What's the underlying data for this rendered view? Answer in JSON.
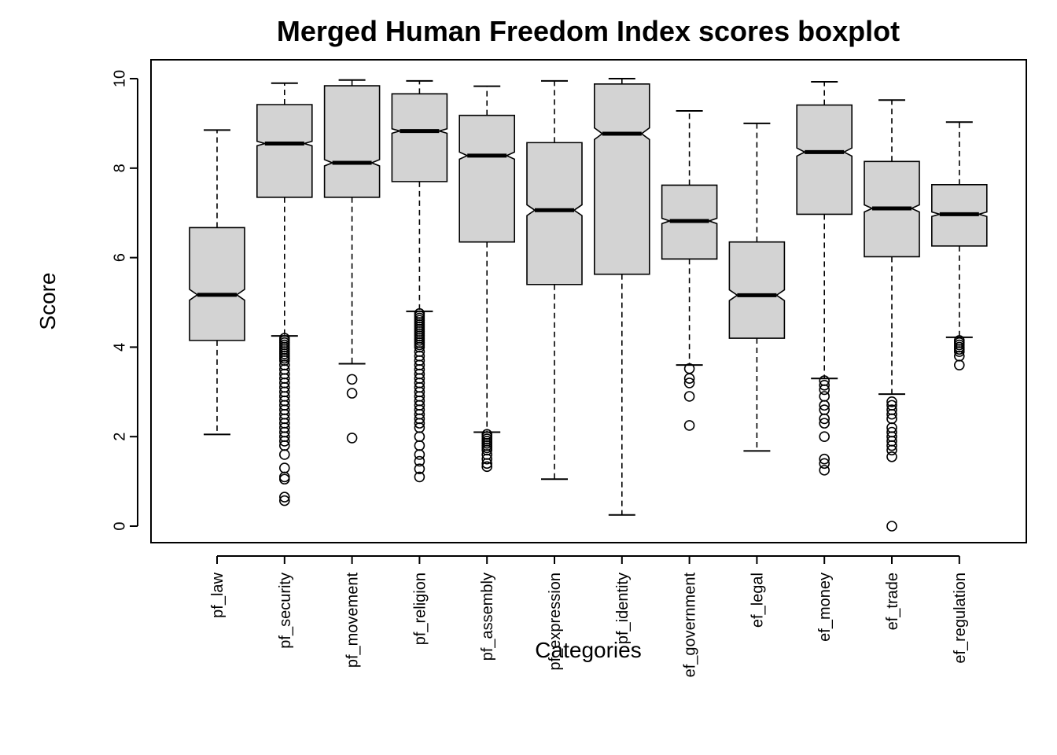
{
  "chart_data": {
    "type": "boxplot",
    "title": "Merged Human Freedom Index scores boxplot",
    "xlabel": "Categories",
    "ylabel": "Score",
    "ylim": [
      -0.4,
      10.4
    ],
    "yticks": [
      0,
      2,
      4,
      6,
      8,
      10
    ],
    "notched": true,
    "box_color": "#d3d3d3",
    "categories": [
      "pf_law",
      "pf_security",
      "pf_movement",
      "pf_religion",
      "pf_assembly",
      "pf_expression",
      "pf_identity",
      "ef_government",
      "ef_legal",
      "ef_money",
      "ef_trade",
      "ef_regulation"
    ],
    "boxes": [
      {
        "category": "pf_law",
        "whisker_low": 2.05,
        "q1": 4.15,
        "median": 5.17,
        "q3": 6.67,
        "whisker_high": 8.85,
        "notch_low": 5.05,
        "notch_high": 5.29,
        "outliers": []
      },
      {
        "category": "pf_security",
        "whisker_low": 4.25,
        "q1": 7.35,
        "median": 8.55,
        "q3": 9.42,
        "whisker_high": 9.9,
        "notch_low": 8.5,
        "notch_high": 8.6,
        "outliers": [
          4.2,
          4.15,
          4.1,
          4.05,
          4.0,
          3.95,
          3.9,
          3.85,
          3.8,
          3.75,
          3.7,
          3.6,
          3.5,
          3.4,
          3.3,
          3.2,
          3.1,
          3.0,
          2.9,
          2.8,
          2.7,
          2.6,
          2.5,
          2.4,
          2.3,
          2.2,
          2.1,
          2.0,
          1.9,
          1.8,
          1.6,
          1.3,
          1.1,
          1.05,
          0.65,
          0.57
        ]
      },
      {
        "category": "pf_movement",
        "whisker_low": 3.63,
        "q1": 7.35,
        "median": 8.12,
        "q3": 9.84,
        "whisker_high": 9.97,
        "notch_low": 8.05,
        "notch_high": 8.19,
        "outliers": [
          3.28,
          2.97,
          1.97
        ]
      },
      {
        "category": "pf_religion",
        "whisker_low": 4.8,
        "q1": 7.7,
        "median": 8.83,
        "q3": 9.66,
        "whisker_high": 9.95,
        "notch_low": 8.78,
        "notch_high": 8.88,
        "outliers": [
          4.75,
          4.7,
          4.65,
          4.6,
          4.55,
          4.5,
          4.45,
          4.4,
          4.35,
          4.3,
          4.25,
          4.2,
          4.15,
          4.1,
          4.05,
          4.0,
          3.9,
          3.8,
          3.7,
          3.6,
          3.5,
          3.4,
          3.3,
          3.2,
          3.1,
          3.0,
          2.9,
          2.8,
          2.7,
          2.6,
          2.5,
          2.4,
          2.3,
          2.2,
          2.0,
          1.8,
          1.6,
          1.45,
          1.28,
          1.1
        ]
      },
      {
        "category": "pf_assembly",
        "whisker_low": 2.1,
        "q1": 6.35,
        "median": 8.28,
        "q3": 9.18,
        "whisker_high": 9.83,
        "notch_low": 8.2,
        "notch_high": 8.36,
        "outliers": [
          2.05,
          2.0,
          1.95,
          1.9,
          1.85,
          1.8,
          1.75,
          1.7,
          1.6,
          1.5,
          1.4,
          1.33
        ]
      },
      {
        "category": "pf_expression",
        "whisker_low": 1.05,
        "q1": 5.4,
        "median": 7.06,
        "q3": 8.57,
        "whisker_high": 9.95,
        "notch_low": 6.94,
        "notch_high": 7.18,
        "outliers": []
      },
      {
        "category": "pf_identity",
        "whisker_low": 0.25,
        "q1": 5.63,
        "median": 8.77,
        "q3": 9.88,
        "whisker_high": 10.0,
        "notch_low": 8.64,
        "notch_high": 8.9,
        "outliers": []
      },
      {
        "category": "ef_government",
        "whisker_low": 3.6,
        "q1": 5.97,
        "median": 6.82,
        "q3": 7.62,
        "whisker_high": 9.28,
        "notch_low": 6.76,
        "notch_high": 6.88,
        "outliers": [
          3.52,
          3.3,
          3.2,
          2.9,
          2.25
        ]
      },
      {
        "category": "ef_legal",
        "whisker_low": 1.68,
        "q1": 4.2,
        "median": 5.16,
        "q3": 6.35,
        "whisker_high": 9.0,
        "notch_low": 5.04,
        "notch_high": 5.28,
        "outliers": []
      },
      {
        "category": "ef_money",
        "whisker_low": 3.3,
        "q1": 6.97,
        "median": 8.36,
        "q3": 9.41,
        "whisker_high": 9.93,
        "notch_low": 8.27,
        "notch_high": 8.45,
        "outliers": [
          3.25,
          3.15,
          3.05,
          2.9,
          2.7,
          2.6,
          2.4,
          2.3,
          2.0,
          1.5,
          1.4,
          1.25
        ]
      },
      {
        "category": "ef_trade",
        "whisker_low": 2.95,
        "q1": 6.02,
        "median": 7.1,
        "q3": 8.15,
        "whisker_high": 9.52,
        "notch_low": 7.02,
        "notch_high": 7.18,
        "outliers": [
          2.78,
          2.7,
          2.6,
          2.5,
          2.4,
          2.2,
          2.1,
          2.0,
          1.9,
          1.8,
          1.7,
          1.55,
          0.0
        ]
      },
      {
        "category": "ef_regulation",
        "whisker_low": 4.22,
        "q1": 6.26,
        "median": 6.97,
        "q3": 7.63,
        "whisker_high": 9.03,
        "notch_low": 6.92,
        "notch_high": 7.02,
        "outliers": [
          4.15,
          4.1,
          4.05,
          4.0,
          3.95,
          3.9,
          3.8,
          3.6
        ]
      }
    ]
  }
}
